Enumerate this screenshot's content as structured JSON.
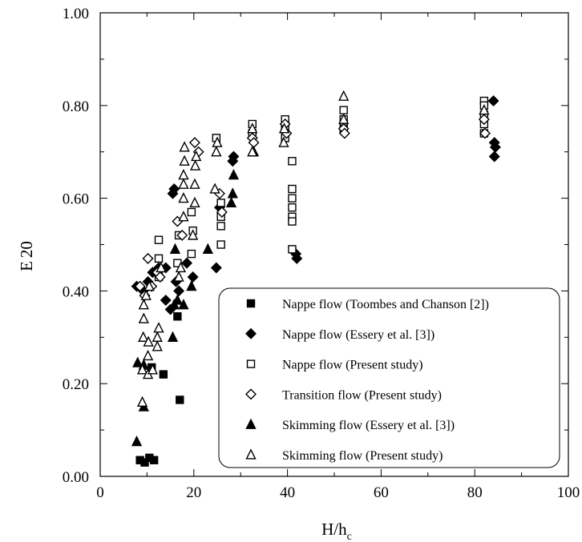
{
  "chart_data": {
    "type": "scatter",
    "xlabel_main": "H/h",
    "xlabel_sub": "c",
    "ylabel_main": "E",
    "ylabel_sub": "20",
    "xlim": [
      0,
      100
    ],
    "ylim": [
      0,
      1
    ],
    "x_ticks": [
      0,
      20,
      40,
      60,
      80,
      100
    ],
    "x_tick_labels": [
      "0",
      "20",
      "40",
      "60",
      "80",
      "100"
    ],
    "y_ticks": [
      0,
      0.2,
      0.4,
      0.6,
      0.8,
      1.0
    ],
    "y_tick_labels": [
      "0.00",
      "0.20",
      "0.40",
      "0.60",
      "0.80",
      "1.00"
    ],
    "legend_position": "bottom-right",
    "series": [
      {
        "name": "Nappe flow (Toombes and Chanson [2])",
        "marker": "square-filled",
        "points": [
          [
            8.5,
            0.035
          ],
          [
            9.5,
            0.03
          ],
          [
            10.5,
            0.04
          ],
          [
            11.5,
            0.035
          ],
          [
            11,
            0.235
          ],
          [
            13.5,
            0.22
          ],
          [
            16.5,
            0.345
          ],
          [
            17,
            0.165
          ]
        ]
      },
      {
        "name": "Nappe flow (Essery et al. [3])",
        "marker": "diamond-filled",
        "points": [
          [
            7.8,
            0.41
          ],
          [
            9.2,
            0.4
          ],
          [
            10.2,
            0.42
          ],
          [
            11.2,
            0.44
          ],
          [
            12.5,
            0.45
          ],
          [
            14,
            0.45
          ],
          [
            14,
            0.38
          ],
          [
            15,
            0.36
          ],
          [
            15.5,
            0.61
          ],
          [
            15.8,
            0.62
          ],
          [
            16.2,
            0.42
          ],
          [
            16.8,
            0.4
          ],
          [
            18.5,
            0.46
          ],
          [
            19.8,
            0.43
          ],
          [
            24.8,
            0.45
          ],
          [
            25.5,
            0.58
          ],
          [
            28.3,
            0.68
          ],
          [
            28.5,
            0.69
          ],
          [
            41.8,
            0.48
          ],
          [
            42,
            0.47
          ],
          [
            84,
            0.81
          ],
          [
            84.2,
            0.72
          ],
          [
            84.4,
            0.71
          ],
          [
            84.2,
            0.69
          ]
        ]
      },
      {
        "name": "Nappe flow (Present study)",
        "marker": "square-open",
        "points": [
          [
            12.5,
            0.51
          ],
          [
            12.5,
            0.47
          ],
          [
            12.5,
            0.43
          ],
          [
            16.8,
            0.52
          ],
          [
            16.5,
            0.46
          ],
          [
            19.5,
            0.57
          ],
          [
            19.8,
            0.53
          ],
          [
            19.5,
            0.48
          ],
          [
            24.8,
            0.73
          ],
          [
            25.8,
            0.59
          ],
          [
            25.8,
            0.56
          ],
          [
            25.8,
            0.54
          ],
          [
            25.8,
            0.5
          ],
          [
            32.5,
            0.76
          ],
          [
            32.5,
            0.74
          ],
          [
            39.5,
            0.77
          ],
          [
            39.5,
            0.75
          ],
          [
            39.5,
            0.73
          ],
          [
            41,
            0.68
          ],
          [
            41,
            0.62
          ],
          [
            41,
            0.6
          ],
          [
            41,
            0.58
          ],
          [
            41,
            0.56
          ],
          [
            41,
            0.55
          ],
          [
            41,
            0.49
          ],
          [
            52,
            0.79
          ],
          [
            52,
            0.77
          ],
          [
            52,
            0.76
          ],
          [
            52,
            0.75
          ],
          [
            82,
            0.81
          ],
          [
            82,
            0.8
          ],
          [
            82,
            0.78
          ],
          [
            82,
            0.76
          ],
          [
            82,
            0.74
          ]
        ]
      },
      {
        "name": "Transition flow (Present study)",
        "marker": "diamond-open",
        "points": [
          [
            8.5,
            0.41
          ],
          [
            9.5,
            0.39
          ],
          [
            10.2,
            0.47
          ],
          [
            11,
            0.41
          ],
          [
            12.2,
            0.44
          ],
          [
            12.8,
            0.43
          ],
          [
            16.5,
            0.55
          ],
          [
            17.5,
            0.52
          ],
          [
            20.2,
            0.72
          ],
          [
            21,
            0.7
          ],
          [
            25.5,
            0.61
          ],
          [
            26,
            0.57
          ],
          [
            32.5,
            0.73
          ],
          [
            32.8,
            0.72
          ],
          [
            39.5,
            0.76
          ],
          [
            39.8,
            0.74
          ],
          [
            52,
            0.75
          ],
          [
            52.2,
            0.74
          ],
          [
            82,
            0.77
          ],
          [
            82.2,
            0.74
          ]
        ]
      },
      {
        "name": "Skimming flow (Essery et al. [3])",
        "marker": "triangle-filled",
        "points": [
          [
            7.8,
            0.075
          ],
          [
            8,
            0.245
          ],
          [
            9.3,
            0.15
          ],
          [
            9.3,
            0.24
          ],
          [
            15.5,
            0.3
          ],
          [
            15.8,
            0.37
          ],
          [
            16,
            0.49
          ],
          [
            16.5,
            0.38
          ],
          [
            17.8,
            0.37
          ],
          [
            19.5,
            0.41
          ],
          [
            23,
            0.49
          ],
          [
            28,
            0.59
          ],
          [
            28.3,
            0.61
          ],
          [
            28.5,
            0.65
          ],
          [
            32.8,
            0.7
          ]
        ]
      },
      {
        "name": "Skimming flow (Present study)",
        "marker": "triangle-open",
        "points": [
          [
            9,
            0.16
          ],
          [
            9,
            0.23
          ],
          [
            9.2,
            0.3
          ],
          [
            9.3,
            0.34
          ],
          [
            9.3,
            0.37
          ],
          [
            9.8,
            0.39
          ],
          [
            10.2,
            0.22
          ],
          [
            10.2,
            0.26
          ],
          [
            10.3,
            0.29
          ],
          [
            10.5,
            0.41
          ],
          [
            11.2,
            0.23
          ],
          [
            12.2,
            0.28
          ],
          [
            12.2,
            0.3
          ],
          [
            12.5,
            0.32
          ],
          [
            13,
            0.45
          ],
          [
            16.8,
            0.43
          ],
          [
            17.2,
            0.45
          ],
          [
            17.8,
            0.56
          ],
          [
            17.8,
            0.6
          ],
          [
            17.8,
            0.63
          ],
          [
            17.8,
            0.65
          ],
          [
            18,
            0.68
          ],
          [
            18,
            0.71
          ],
          [
            19.8,
            0.52
          ],
          [
            20.2,
            0.59
          ],
          [
            20.2,
            0.63
          ],
          [
            20.3,
            0.67
          ],
          [
            20.5,
            0.69
          ],
          [
            24.5,
            0.62
          ],
          [
            24.8,
            0.7
          ],
          [
            25,
            0.72
          ],
          [
            32.5,
            0.7
          ],
          [
            32.5,
            0.75
          ],
          [
            39.2,
            0.72
          ],
          [
            39.3,
            0.75
          ],
          [
            52,
            0.77
          ],
          [
            52,
            0.82
          ],
          [
            82,
            0.79
          ]
        ]
      }
    ]
  }
}
